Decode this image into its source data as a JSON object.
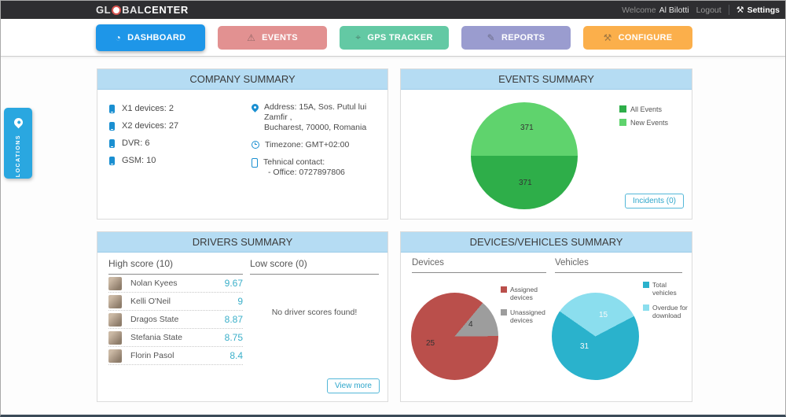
{
  "topbar": {
    "logo_gl": "GL",
    "logo_bal": "BAL",
    "logo_center": "CENTER",
    "welcome_prefix": "Welcome",
    "username": "Al Bilotti",
    "logout_label": "Logout",
    "settings_label": "Settings",
    "settings_icon_glyph": "⚒"
  },
  "nav": {
    "tabs": [
      {
        "label": "DASHBOARD",
        "icon": "gauge-icon",
        "glyph": "◔",
        "color": "#1e96e8",
        "active": true
      },
      {
        "label": "EVENTS",
        "icon": "warning-icon",
        "glyph": "⚠",
        "color": "#e29191",
        "active": false
      },
      {
        "label": "GPS TRACKER",
        "icon": "map-pin-icon",
        "glyph": "⌖",
        "color": "#63c9a4",
        "active": false
      },
      {
        "label": "REPORTS",
        "icon": "pencil-icon",
        "glyph": "✎",
        "color": "#9a9ccf",
        "active": false
      },
      {
        "label": "CONFIGURE",
        "icon": "wrench-icon",
        "glyph": "⚒",
        "color": "#fbaf4b",
        "active": false
      }
    ]
  },
  "locations_tab": {
    "label": "LOCATIONS"
  },
  "panels": {
    "company": {
      "title": "COMPANY SUMMARY",
      "stats": [
        {
          "label": "X1 devices: 2"
        },
        {
          "label": "X2 devices: 27"
        },
        {
          "label": "DVR: 6"
        },
        {
          "label": "GSM: 10"
        }
      ],
      "address_line1": "Address: 15A, Sos. Putul lui Zamfir ,",
      "address_line2": "Bucharest, 70000, Romania",
      "timezone": "Timezone: GMT+02:00",
      "contact_label": "Tehnical contact:",
      "contact_value": "- Office: 0727897806"
    },
    "events": {
      "title": "EVENTS SUMMARY",
      "incidents_button": "Incidents (0)"
    },
    "drivers": {
      "title": "DRIVERS SUMMARY",
      "high_header": "High score (10)",
      "low_header": "Low score (0)",
      "rows": [
        {
          "name": "Nolan Kyees",
          "score": "9.67"
        },
        {
          "name": "Kelli O'Neil",
          "score": "9"
        },
        {
          "name": "Dragos State",
          "score": "8.87"
        },
        {
          "name": "Stefania State",
          "score": "8.75"
        },
        {
          "name": "Florin Pasol",
          "score": "8.4"
        }
      ],
      "empty_text": "No driver scores found!",
      "view_more_button": "View more"
    },
    "devices_vehicles": {
      "title": "DEVICES/VEHICLES SUMMARY",
      "devices_header": "Devices",
      "vehicles_header": "Vehicles"
    }
  },
  "chart_data": [
    {
      "type": "pie",
      "name": "events-summary-pie",
      "start_deg": 270,
      "slices": [
        {
          "label": "New Events",
          "value": 371,
          "color": "#5fd36d"
        },
        {
          "label": "All Events",
          "value": 371,
          "color": "#2eae49"
        }
      ]
    },
    {
      "type": "pie",
      "name": "devices-pie",
      "start_deg": 40,
      "slices": [
        {
          "label": "Unassigned devices",
          "value": 4,
          "color": "#9d9d9d"
        },
        {
          "label": "Assigned devices",
          "value": 25,
          "color": "#ba4f4b"
        }
      ]
    },
    {
      "type": "pie",
      "name": "vehicles-pie",
      "start_deg": 305,
      "slices": [
        {
          "label": "Overdue for download",
          "value": 15,
          "color": "#8bdeee"
        },
        {
          "label": "Total vehicles",
          "value": 31,
          "color": "#2ab2cc"
        }
      ]
    }
  ]
}
